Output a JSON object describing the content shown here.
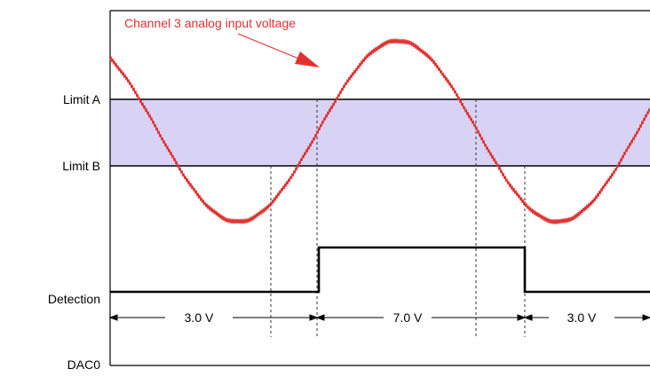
{
  "diagram": {
    "annotation": "Channel 3 analog input voltage",
    "labels": {
      "limit_a": "Limit A",
      "limit_b": "Limit B",
      "detection": "Detection",
      "dac0": "DAC0"
    },
    "dac_segments": [
      {
        "label": "3.0 V"
      },
      {
        "label": "7.0 V"
      },
      {
        "label": "3.0 V"
      }
    ],
    "colors": {
      "signal": "#e03030",
      "band": "#d8d2f4",
      "line": "#000000",
      "annotation": "#e03030"
    }
  }
}
